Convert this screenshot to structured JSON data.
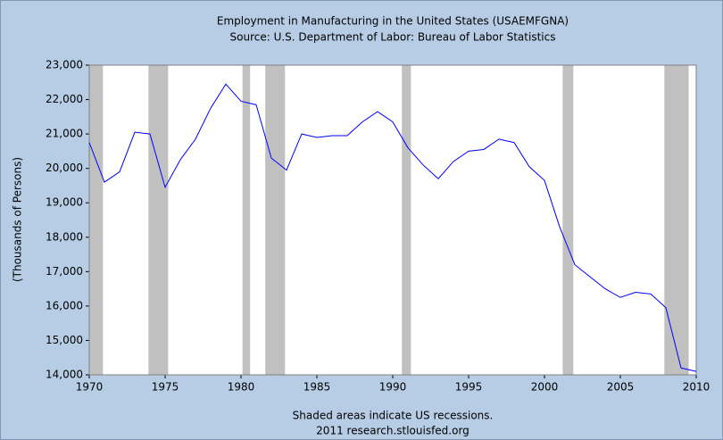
{
  "chart_data": {
    "type": "line",
    "title": "Employment in Manufacturing in the United States (USAEMFGNA)",
    "subtitle": "Source: U.S. Department of Labor: Bureau of Labor Statistics",
    "ylabel": "(Thousands of Persons)",
    "notes": [
      "Shaded areas indicate US recessions.",
      "2011 research.stlouisfed.org"
    ],
    "x": [
      1970,
      1971,
      1972,
      1973,
      1974,
      1975,
      1976,
      1977,
      1978,
      1979,
      1980,
      1981,
      1982,
      1983,
      1984,
      1985,
      1986,
      1987,
      1988,
      1989,
      1990,
      1991,
      1992,
      1993,
      1994,
      1995,
      1996,
      1997,
      1998,
      1999,
      2000,
      2001,
      2002,
      2003,
      2004,
      2005,
      2006,
      2007,
      2008,
      2009,
      2010
    ],
    "series": [
      {
        "name": "USAEMFGNA",
        "color": "#0000ff",
        "values": [
          20750,
          19600,
          19900,
          21050,
          21000,
          19450,
          20250,
          20850,
          21750,
          22450,
          21950,
          21850,
          20300,
          19950,
          21000,
          20900,
          20950,
          20950,
          21350,
          21650,
          21350,
          20600,
          20100,
          19700,
          20200,
          20500,
          20550,
          20850,
          20750,
          20050,
          19650,
          18300,
          17200,
          16850,
          16500,
          16250,
          16400,
          16350,
          15950,
          14200,
          14100
        ]
      }
    ],
    "recessions": [
      [
        1970,
        1970.9
      ],
      [
        1973.9,
        1975.2
      ],
      [
        1980.1,
        1980.6
      ],
      [
        1981.6,
        1982.9
      ],
      [
        1990.6,
        1991.2
      ],
      [
        2001.2,
        2001.9
      ],
      [
        2007.9,
        2009.5
      ]
    ],
    "recession_color": "#c0c0c0",
    "xlim": [
      1970,
      2010
    ],
    "xticks": [
      1970,
      1975,
      1980,
      1985,
      1990,
      1995,
      2000,
      2005,
      2010
    ],
    "ylim": [
      14000,
      23000
    ],
    "yticks": [
      {
        "value": 14000,
        "label": "14,000"
      },
      {
        "value": 15000,
        "label": "15,000"
      },
      {
        "value": 16000,
        "label": "16,000"
      },
      {
        "value": 17000,
        "label": "17,000"
      },
      {
        "value": 18000,
        "label": "18,000"
      },
      {
        "value": 19000,
        "label": "19,000"
      },
      {
        "value": 20000,
        "label": "20,000"
      },
      {
        "value": 21000,
        "label": "21,000"
      },
      {
        "value": 22000,
        "label": "22,000"
      },
      {
        "value": 23000,
        "label": "23,000"
      }
    ]
  }
}
